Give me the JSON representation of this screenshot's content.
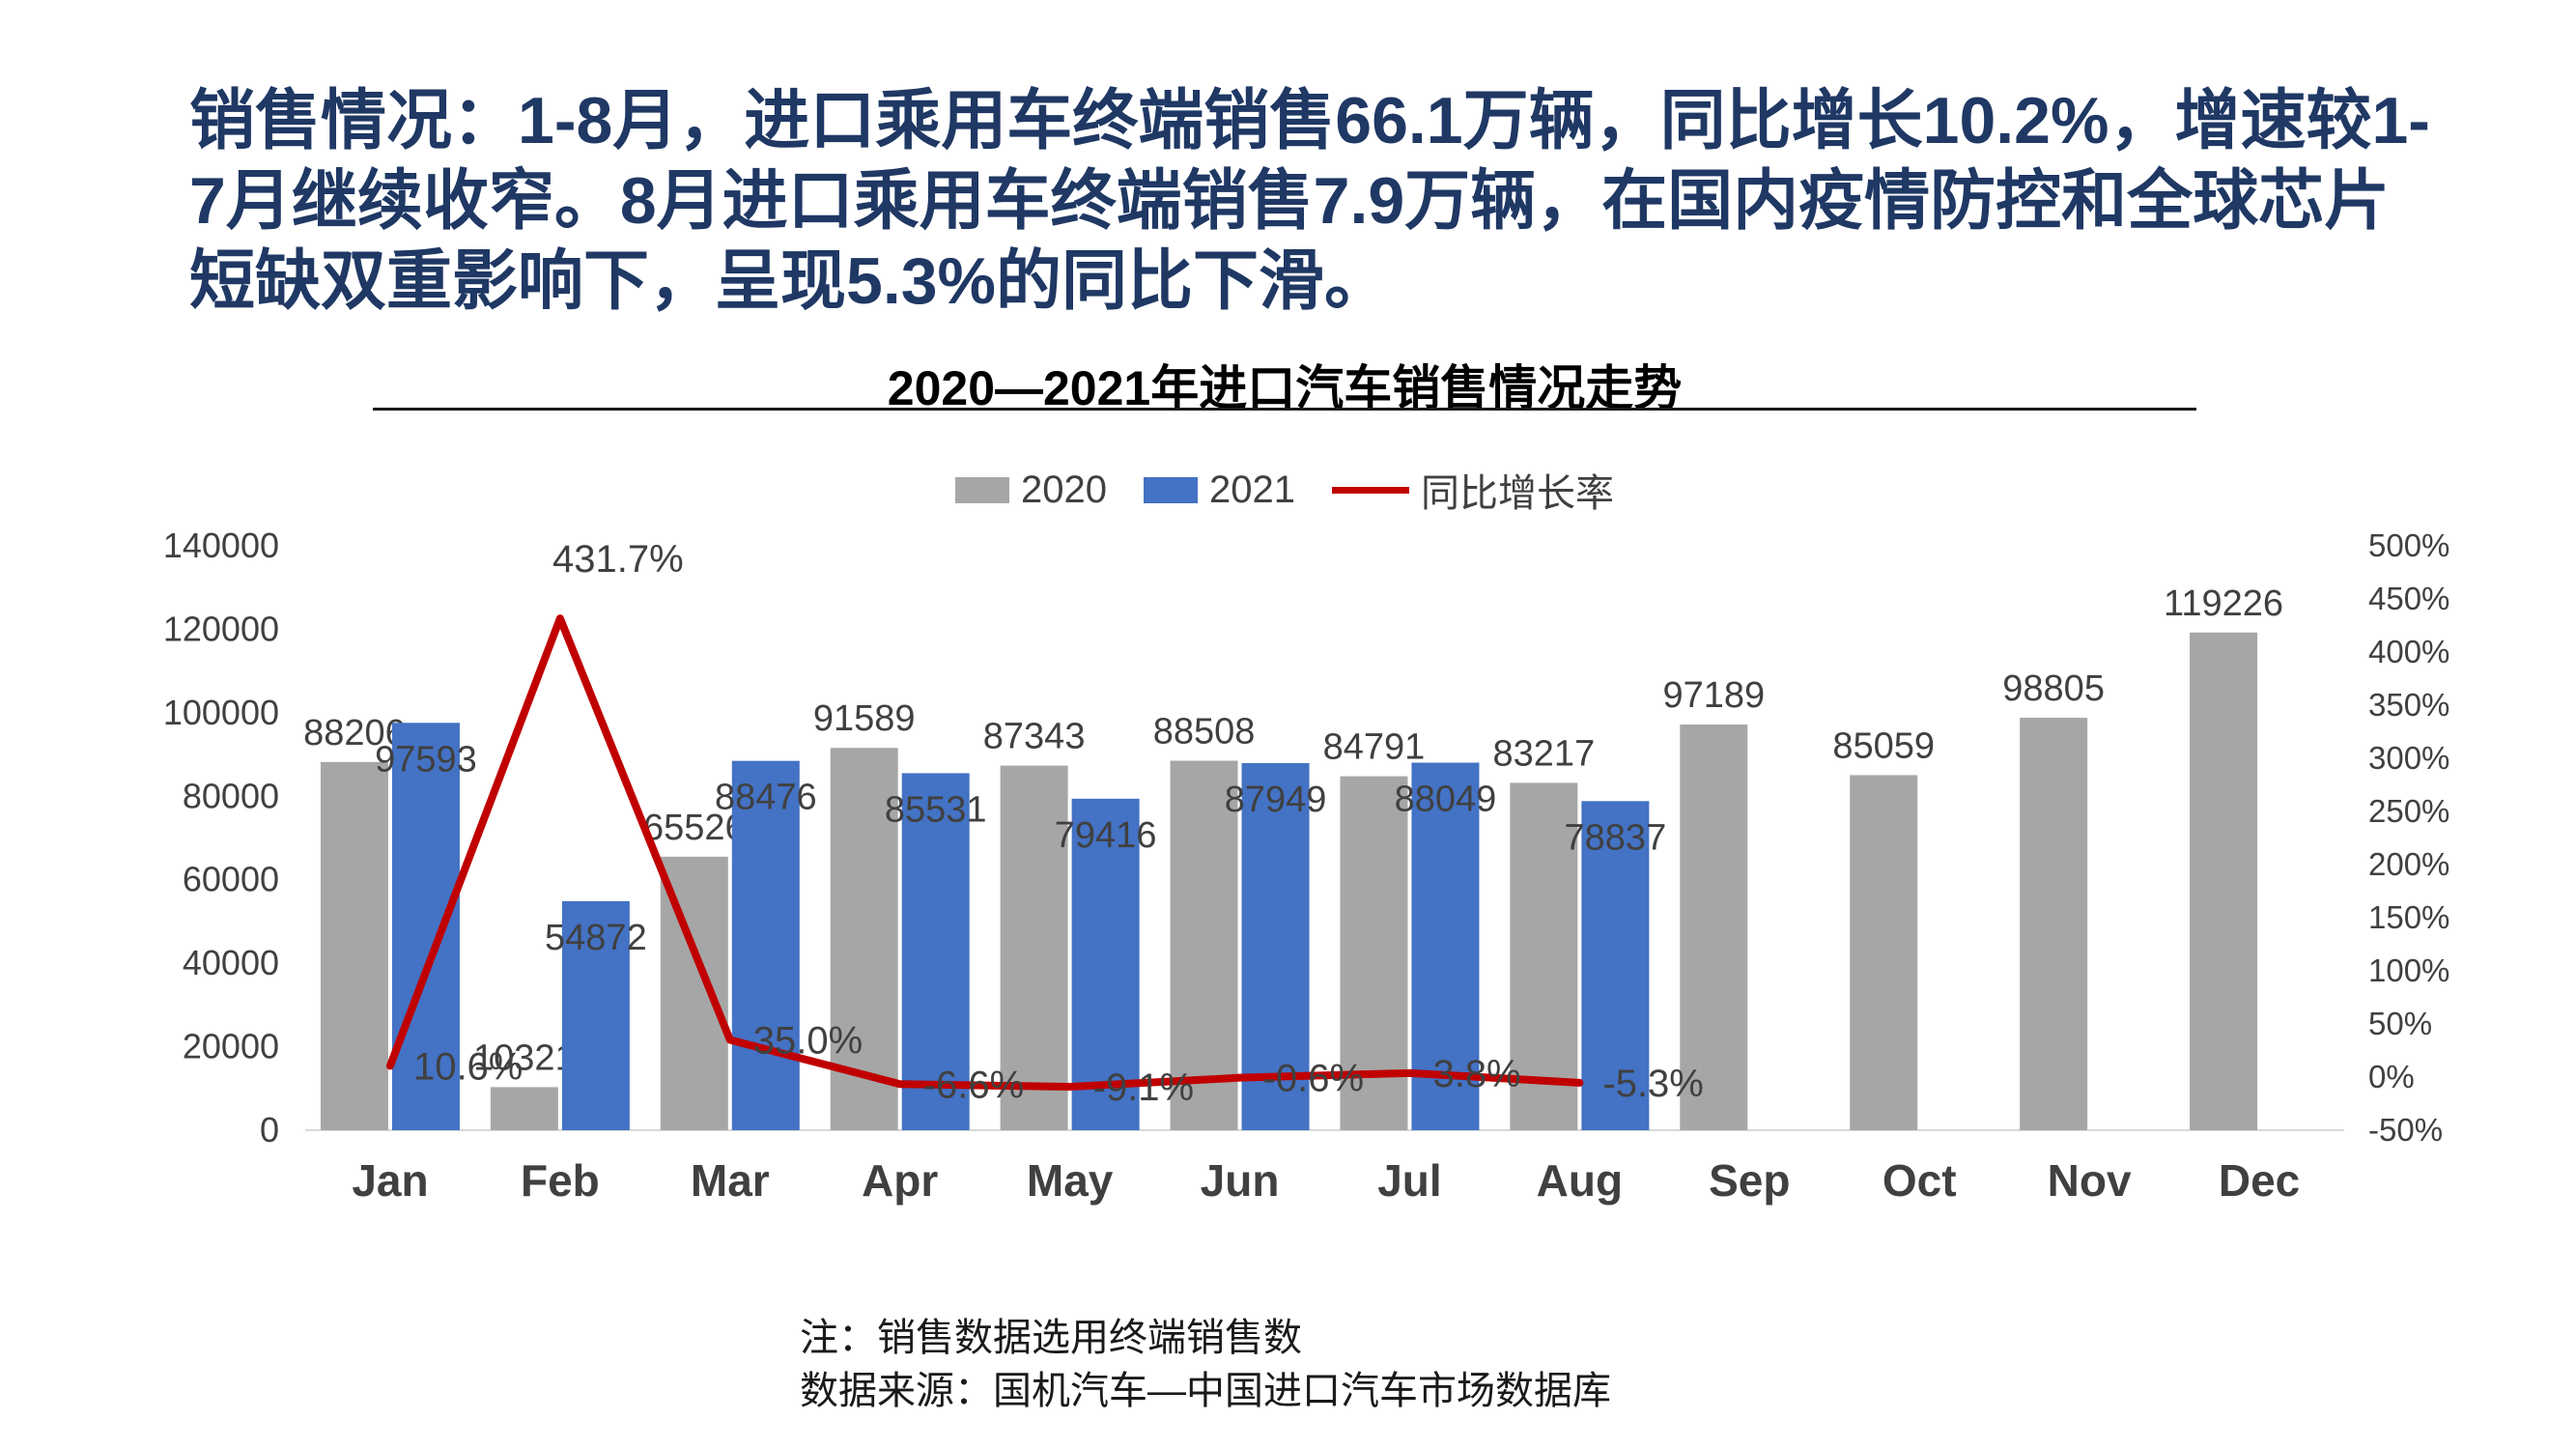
{
  "header": {
    "text": "销售情况：1-8月，进口乘用车终端销售66.1万辆，同比增长10.2%，增速较1-7月继续收窄。8月进口乘用车终端销售7.9万辆，在国内疫情防控和全球芯片短缺双重影响下，呈现5.3%的同比下滑。"
  },
  "chart": {
    "title": "2020—2021年进口汽车销售情况走势",
    "legend": [
      {
        "label": "2020",
        "type": "box",
        "color": "#a6a6a6"
      },
      {
        "label": "2021",
        "type": "box",
        "color": "#4472c4"
      },
      {
        "label": "同比增长率",
        "type": "line",
        "color": "#c00000"
      }
    ]
  },
  "chart_data": {
    "type": "bar",
    "title": "2020—2021年进口汽车销售情况走势",
    "categories": [
      "Jan",
      "Feb",
      "Mar",
      "Apr",
      "May",
      "Jun",
      "Jul",
      "Aug",
      "Sep",
      "Oct",
      "Nov",
      "Dec"
    ],
    "series": [
      {
        "name": "2020",
        "type": "bar",
        "axis": "left",
        "color": "#a6a6a6",
        "values": [
          88206,
          10321,
          65526,
          91589,
          87343,
          88508,
          84791,
          83217,
          97189,
          85059,
          98805,
          119226
        ]
      },
      {
        "name": "2021",
        "type": "bar",
        "axis": "left",
        "color": "#4472c4",
        "values": [
          97593,
          54872,
          88476,
          85531,
          79416,
          87949,
          88049,
          78837,
          null,
          null,
          null,
          null
        ]
      },
      {
        "name": "同比增长率",
        "type": "line",
        "axis": "right",
        "color": "#c00000",
        "values": [
          10.6,
          431.7,
          35.0,
          -6.6,
          -9.1,
          -0.6,
          3.8,
          -5.3,
          null,
          null,
          null,
          null
        ],
        "labels": [
          "10.6%",
          "431.7%",
          "35.0%",
          "-6.6%",
          "-9.1%",
          "-0.6%",
          "3.8%",
          "-5.3%",
          null,
          null,
          null,
          null
        ]
      }
    ],
    "left_axis": {
      "min": 0,
      "max": 140000,
      "ticks": [
        "140000",
        "120000",
        "100000",
        "80000",
        "60000",
        "40000",
        "20000",
        "0"
      ]
    },
    "right_axis": {
      "min": -50,
      "max": 500,
      "ticks": [
        "500%",
        "450%",
        "400%",
        "350%",
        "300%",
        "250%",
        "200%",
        "150%",
        "100%",
        "50%",
        "0%",
        "-50%"
      ]
    },
    "legend_position": "top",
    "grid": false
  },
  "footnotes": {
    "note1": "注：销售数据选用终端销售数",
    "note2": "数据来源：国机汽车—中国进口汽车市场数据库"
  }
}
